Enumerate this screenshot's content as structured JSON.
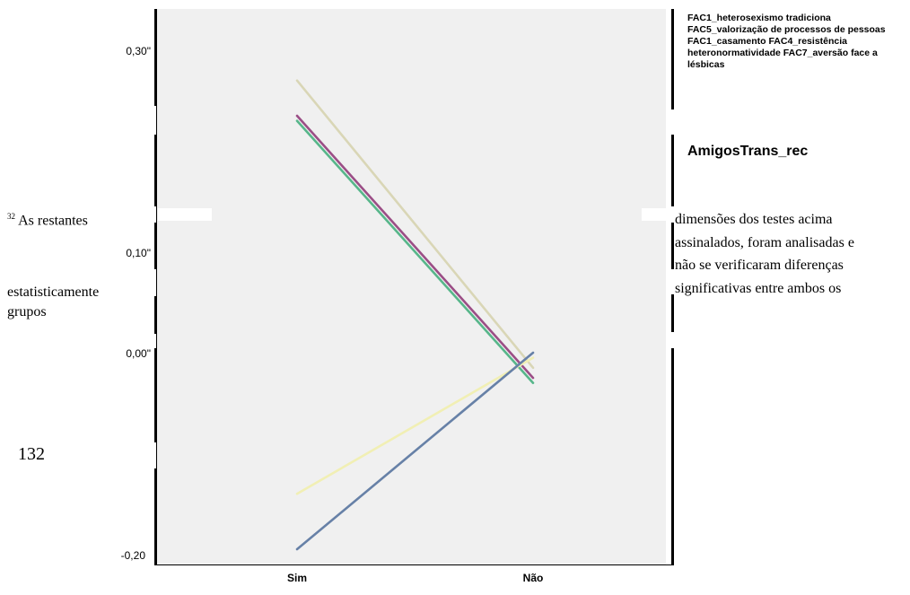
{
  "chart_data": {
    "type": "line",
    "categories": [
      "Sim",
      "Não"
    ],
    "yticks": [
      "0,30\"",
      "0,10\"",
      "0,00\"",
      "-0,20"
    ],
    "ylim": [
      -0.2,
      0.35
    ],
    "series": [
      {
        "values": [
          0.27,
          -0.015
        ],
        "color": "#d9d6b6"
      },
      {
        "values": [
          0.235,
          -0.025
        ],
        "color": "#9b4e86"
      },
      {
        "values": [
          0.23,
          -0.03
        ],
        "color": "#57b68a"
      },
      {
        "values": [
          -0.14,
          -0.005
        ],
        "color": "#f1efb4"
      },
      {
        "values": [
          -0.195,
          0.0
        ],
        "color": "#6781a7"
      }
    ],
    "legend_items": "FAC1_heterosexismo tradiciona FAC5_valorização de processos de pessoas FAC1_casamento FAC4_resistência heteronormatividade FAC7_aversão face a lésbicas",
    "legend_title": "AmigosTrans_rec",
    "plot_background": "#f0f0f0"
  },
  "footnote": {
    "mark": "32",
    "left_a": "As restantes",
    "left_b": "estatisticamente",
    "left_c": "grupos",
    "right_lines": [
      "dimensões dos testes acima",
      "assinalados, foram analisadas e",
      "não se verificaram diferenças",
      "significativas entre ambos os"
    ]
  },
  "page_number": "132"
}
